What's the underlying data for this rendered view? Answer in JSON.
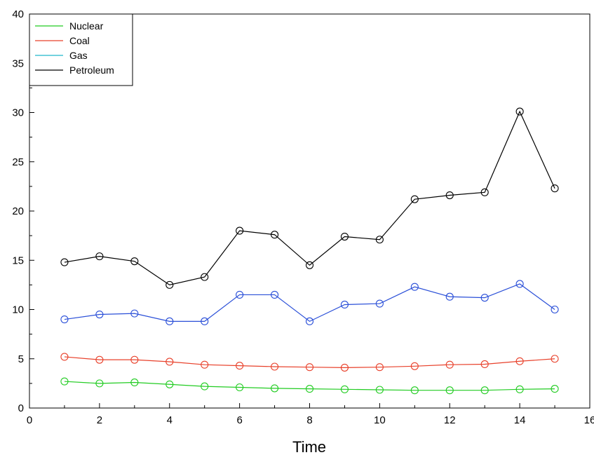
{
  "chart_data": {
    "type": "line",
    "xlabel": "Time",
    "ylabel": "",
    "xlim": [
      0,
      16
    ],
    "ylim": [
      0,
      40
    ],
    "x_ticks": [
      0,
      2,
      4,
      6,
      8,
      10,
      12,
      14,
      16
    ],
    "y_ticks": [
      0,
      5,
      10,
      15,
      20,
      25,
      30,
      35,
      40
    ],
    "x": [
      1,
      2,
      3,
      4,
      5,
      6,
      7,
      8,
      9,
      10,
      11,
      12,
      13,
      14,
      15
    ],
    "legend_position": "top-left",
    "marker": "circle",
    "series": [
      {
        "name": "Nuclear",
        "color": "#22cc22",
        "values": [
          2.7,
          2.5,
          2.6,
          2.4,
          2.2,
          2.1,
          2.0,
          1.95,
          1.9,
          1.85,
          1.8,
          1.8,
          1.8,
          1.9,
          1.95
        ]
      },
      {
        "name": "Coal",
        "color": "#e8402a",
        "values": [
          5.2,
          4.9,
          4.9,
          4.7,
          4.4,
          4.3,
          4.2,
          4.15,
          4.1,
          4.15,
          4.25,
          4.4,
          4.45,
          4.75,
          5.0
        ]
      },
      {
        "name": "Gas",
        "color": "#2a4fd8",
        "legend_color": "#22b8cc",
        "values": [
          9.0,
          9.5,
          9.6,
          8.8,
          8.8,
          11.5,
          11.5,
          8.8,
          10.5,
          10.6,
          12.3,
          11.3,
          11.2,
          12.6,
          10.0
        ]
      },
      {
        "name": "Petroleum",
        "color": "#000000",
        "values": [
          14.8,
          15.4,
          14.9,
          12.5,
          13.3,
          18.0,
          17.6,
          14.5,
          17.4,
          17.1,
          21.2,
          21.6,
          21.9,
          30.1,
          22.3
        ]
      }
    ]
  }
}
